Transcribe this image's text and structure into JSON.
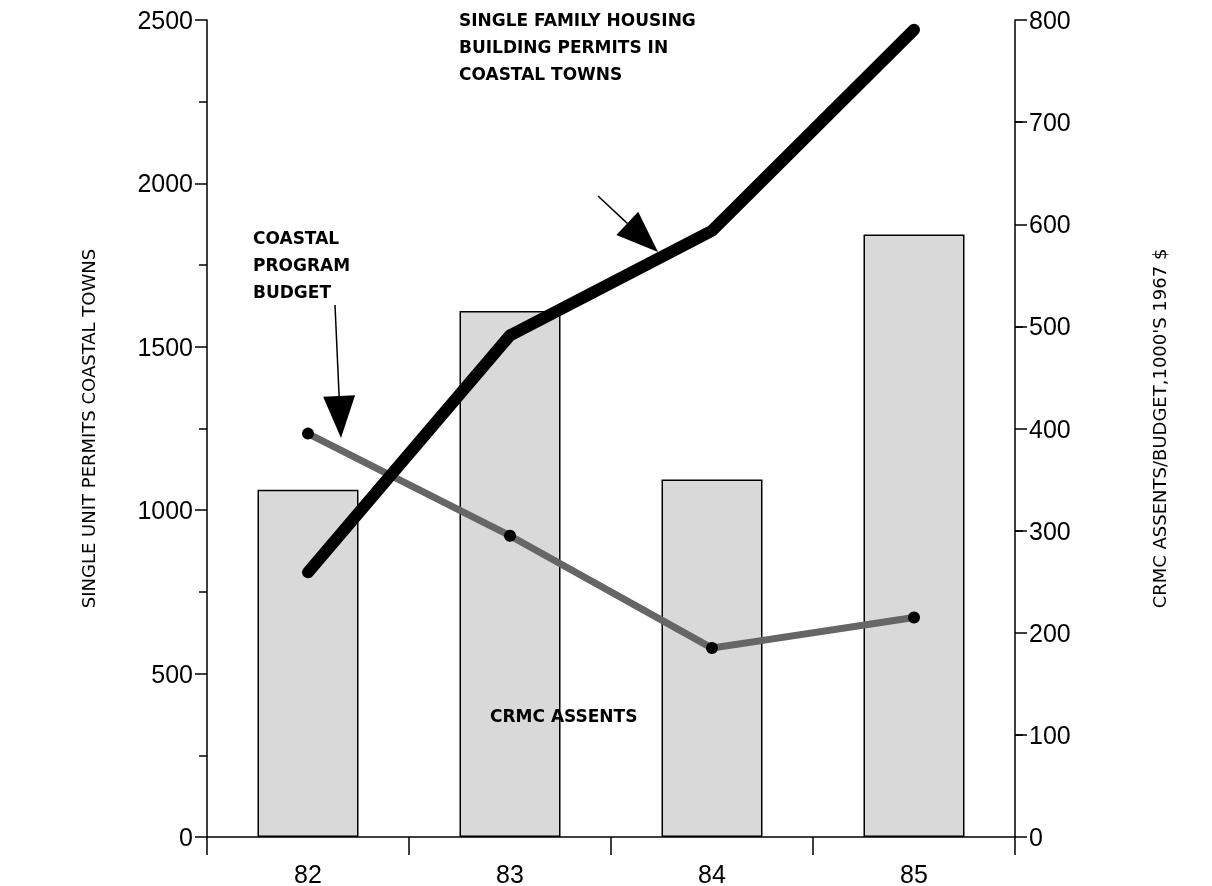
{
  "chart_data": {
    "type": "bar",
    "ylabel": "SINGLE UNIT PERMITS COASTAL TOWNS",
    "y2label": "CRMC ASSENTS/BUDGET,1000'S 1967 $",
    "categories": [
      "82",
      "83",
      "84",
      "85"
    ],
    "series": [
      {
        "name": "CRMC ASSENTS",
        "axis": "y2",
        "color": "#d9d9d9",
        "values": [
          340,
          515,
          350,
          590
        ]
      },
      {
        "type": "line",
        "color": "#000000",
        "marker": "none",
        "values": [
          810,
          1535,
          1855,
          2470
        ]
      },
      {
        "type": "line",
        "axis": "y2",
        "color": "#666666",
        "marker": "circle",
        "values": [
          395,
          295,
          185,
          215
        ]
      }
    ],
    "annotations": [
      "SINGLE FAMILY HOUSING BUILDING PERMITS IN COASTAL TOWNS",
      "COASTAL PROGRAM BUDGET"
    ],
    "ylim": [
      0,
      2500
    ],
    "yticks": [
      0,
      500,
      1000,
      1500,
      2000,
      2500
    ],
    "y2lim": [
      0,
      800
    ],
    "y2ticks": [
      0,
      100,
      200,
      300,
      400,
      500,
      600,
      700,
      800
    ],
    "legend": false,
    "grid": false
  }
}
